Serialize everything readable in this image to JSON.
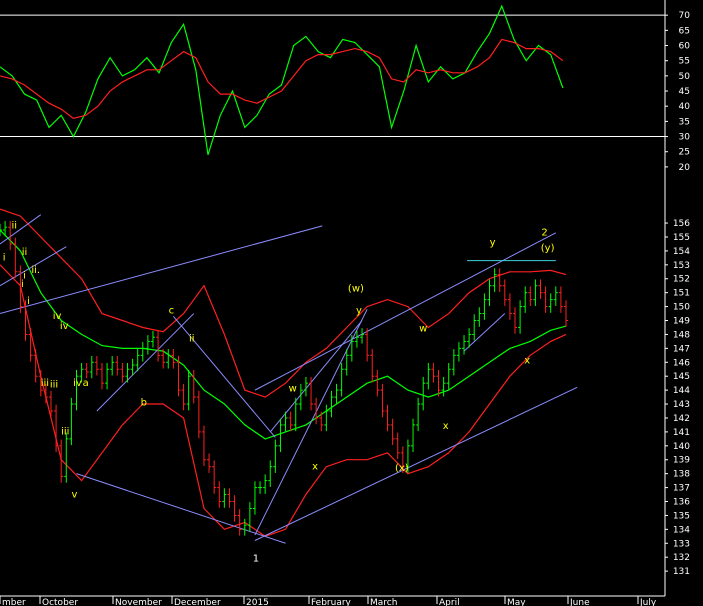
{
  "chart_data": [
    {
      "type": "line",
      "panel": "oscillator",
      "ylim": [
        17,
        75
      ],
      "ticks": [
        20,
        25,
        30,
        35,
        40,
        45,
        50,
        55,
        60,
        65,
        70
      ],
      "hlines": [
        30,
        70
      ],
      "x": [
        0,
        12,
        24,
        36,
        48,
        60,
        72,
        84,
        96,
        108,
        120,
        132,
        144,
        156,
        168,
        180,
        192,
        204,
        216,
        228,
        240,
        252,
        264,
        276,
        288,
        300,
        312,
        324,
        336,
        348,
        360,
        372,
        384,
        396,
        408,
        420,
        432,
        444,
        456,
        468,
        480,
        492,
        504,
        516,
        528,
        540,
        552
      ],
      "series": [
        {
          "color": "#00ff00",
          "values": [
            53,
            50,
            44,
            42,
            33,
            37,
            30,
            38,
            49,
            56,
            50,
            52,
            56,
            51,
            61,
            67,
            52,
            24,
            37,
            45,
            33,
            37,
            44,
            47,
            60,
            63,
            58,
            56,
            62,
            61,
            57,
            53,
            33,
            45,
            60,
            48,
            53,
            49,
            51,
            58,
            64,
            73,
            62,
            55,
            60,
            57,
            46
          ]
        },
        {
          "color": "#ff2020",
          "values": [
            50,
            49,
            47,
            44,
            41,
            39,
            36,
            37,
            40,
            45,
            48,
            50,
            52,
            52,
            55,
            58,
            56,
            48,
            44,
            44,
            42,
            41,
            43,
            45,
            50,
            55,
            57,
            57,
            58,
            59,
            58,
            56,
            49,
            48,
            52,
            51,
            52,
            51,
            51,
            53,
            56,
            62,
            61,
            59,
            59,
            58,
            55
          ]
        }
      ]
    },
    {
      "type": "bar",
      "panel": "price",
      "ylim": [
        129.5,
        157.8
      ],
      "ticks": [
        131,
        132,
        133,
        134,
        135,
        136,
        137,
        138,
        139,
        140,
        141,
        142,
        143,
        144,
        145,
        146,
        147,
        148,
        149,
        150,
        151,
        152,
        153,
        154,
        155,
        156
      ],
      "months": [
        "mber",
        "October",
        "November",
        "December",
        "2015",
        "February",
        "March",
        "April",
        "May",
        "June",
        "July"
      ],
      "x": [
        0,
        5,
        10,
        15,
        20,
        25,
        30,
        35,
        40,
        45,
        50,
        55,
        60,
        65,
        70,
        75,
        80,
        85,
        90,
        95,
        100,
        105,
        110,
        115,
        120,
        125,
        130,
        135,
        140,
        145,
        150,
        155,
        160,
        165,
        170,
        175,
        180,
        185,
        190,
        195,
        200,
        205,
        210,
        215,
        220,
        225,
        230,
        235,
        240,
        245,
        250,
        255,
        260,
        265,
        270,
        275,
        280,
        285,
        290,
        295,
        300,
        305,
        310,
        315,
        320,
        325,
        330,
        335,
        340,
        345,
        350,
        355,
        360,
        365,
        370,
        375,
        380,
        385,
        390,
        395,
        400,
        405,
        410,
        415,
        420,
        425,
        430,
        435,
        440,
        445,
        450,
        455,
        460,
        465,
        470,
        475,
        480,
        485,
        490,
        495,
        500,
        505,
        510,
        515,
        520,
        525,
        530,
        535,
        540,
        545,
        550,
        555
      ],
      "close": [
        155.5,
        155.7,
        154.5,
        152.5,
        150.0,
        148.0,
        146.5,
        145.0,
        144.0,
        143.5,
        142.5,
        140.0,
        137.8,
        140.5,
        143.0,
        145.0,
        145.5,
        145.3,
        146.0,
        145.5,
        144.5,
        145.5,
        146.0,
        145.5,
        145.0,
        145.5,
        145.8,
        146.5,
        147.0,
        147.5,
        147.8,
        146.5,
        146.0,
        146.5,
        146.0,
        144.0,
        143.0,
        145.0,
        143.5,
        141.0,
        139.0,
        138.5,
        137.0,
        136.0,
        136.5,
        136.0,
        135.0,
        134.0,
        134.3,
        135.5,
        137.0,
        137.0,
        137.5,
        138.5,
        140.0,
        141.5,
        142.0,
        141.5,
        143.0,
        144.0,
        144.5,
        143.0,
        142.0,
        141.5,
        142.5,
        143.5,
        144.0,
        145.5,
        146.5,
        147.5,
        147.8,
        148.0,
        146.5,
        145.0,
        144.0,
        142.5,
        141.5,
        140.5,
        139.5,
        138.5,
        140.0,
        141.5,
        143.0,
        144.5,
        145.5,
        145.0,
        144.0,
        144.5,
        145.5,
        146.5,
        147.0,
        147.5,
        148.0,
        149.0,
        149.5,
        150.5,
        151.5,
        152.3,
        151.5,
        150.5,
        149.5,
        148.5,
        150.0,
        151.0,
        150.5,
        151.5,
        151.0,
        150.0,
        150.5,
        151.0,
        150.0,
        149.0
      ],
      "lines": [
        {
          "color": "#ff2020",
          "role": "upper band",
          "x": [
            0,
            20,
            40,
            60,
            80,
            100,
            120,
            140,
            160,
            180,
            200,
            220,
            240,
            260,
            280,
            300,
            320,
            340,
            360,
            380,
            400,
            420,
            440,
            460,
            480,
            500,
            520,
            540,
            555
          ],
          "values": [
            157.0,
            156.5,
            155.0,
            153.5,
            152.0,
            149.5,
            149.0,
            148.5,
            148.2,
            149.5,
            151.5,
            148.0,
            144.0,
            143.5,
            144.5,
            146.0,
            147.0,
            148.5,
            150.0,
            150.5,
            150.0,
            148.5,
            149.5,
            151.0,
            152.0,
            152.5,
            152.5,
            152.6,
            152.3
          ]
        },
        {
          "color": "#ff2020",
          "role": "lower band",
          "x": [
            0,
            20,
            40,
            60,
            80,
            100,
            120,
            140,
            160,
            180,
            200,
            220,
            240,
            260,
            280,
            300,
            320,
            340,
            360,
            380,
            400,
            420,
            440,
            460,
            480,
            500,
            520,
            540,
            555
          ],
          "values": [
            153.0,
            151.5,
            145.0,
            139.0,
            137.5,
            139.5,
            141.5,
            143.0,
            143.0,
            142.0,
            135.5,
            134.0,
            134.5,
            133.5,
            134.0,
            136.5,
            138.5,
            139.0,
            139.0,
            139.5,
            138.0,
            138.5,
            139.5,
            141.0,
            143.0,
            145.0,
            146.5,
            147.5,
            148.0
          ]
        },
        {
          "color": "#00ff00",
          "role": "moving average",
          "x": [
            0,
            20,
            40,
            60,
            80,
            100,
            120,
            140,
            160,
            180,
            200,
            220,
            240,
            260,
            280,
            300,
            320,
            340,
            360,
            380,
            400,
            420,
            440,
            460,
            480,
            500,
            520,
            540,
            555
          ],
          "values": [
            155.5,
            154.0,
            151.0,
            149.0,
            148.0,
            147.2,
            147.0,
            147.0,
            146.8,
            145.8,
            144.0,
            143.0,
            141.5,
            140.5,
            141.0,
            141.5,
            142.5,
            143.5,
            144.5,
            145.0,
            144.0,
            143.5,
            144.0,
            145.0,
            146.0,
            147.0,
            147.5,
            148.3,
            148.6
          ]
        }
      ],
      "trendlines": [
        {
          "color": "#8c8cff",
          "points": [
            [
              0,
              154.5
            ],
            [
              40,
              156.6
            ]
          ]
        },
        {
          "color": "#8c8cff",
          "points": [
            [
              0,
              151.5
            ],
            [
              65,
              154.3
            ]
          ]
        },
        {
          "color": "#8c8cff",
          "points": [
            [
              0,
              149.5
            ],
            [
              316,
              155.8
            ]
          ]
        },
        {
          "color": "#8c8cff",
          "points": [
            [
              75,
              138.0
            ],
            [
              280,
              133.0
            ]
          ]
        },
        {
          "color": "#8c8cff",
          "points": [
            [
              250,
              133.2
            ],
            [
              566,
              144.2
            ]
          ]
        },
        {
          "color": "#8c8cff",
          "points": [
            [
              250,
              144.0
            ],
            [
              545,
              155.3
            ]
          ]
        },
        {
          "color": "#8c8cff",
          "points": [
            [
              95,
              142.5
            ],
            [
              190,
              149.5
            ]
          ]
        },
        {
          "color": "#8c8cff",
          "points": [
            [
              170,
              149.3
            ],
            [
              270,
              140.6
            ]
          ]
        },
        {
          "color": "#8c8cff",
          "points": [
            [
              250,
              133.6
            ],
            [
              360,
              149.8
            ]
          ]
        },
        {
          "color": "#8c8cff",
          "points": [
            [
              265,
              141.0
            ],
            [
              355,
              149.0
            ]
          ]
        },
        {
          "color": "#8c8cff",
          "points": [
            [
              455,
              146.8
            ],
            [
              495,
              149.5
            ]
          ]
        },
        {
          "color": "#40d0e0",
          "points": [
            [
              458,
              153.3
            ],
            [
              545,
              153.3
            ]
          ]
        }
      ],
      "annotations": [
        {
          "text": "ii",
          "x": 14,
          "y": 155.6,
          "color": "#ffff00"
        },
        {
          "text": "i",
          "x": 4,
          "y": 153.3,
          "color": "#ffff00"
        },
        {
          "text": "ii",
          "x": 24,
          "y": 153.7,
          "color": "#ffff00"
        },
        {
          "text": "i",
          "x": 24,
          "y": 152.0,
          "color": "#ffff00"
        },
        {
          "text": "ii.",
          "x": 35,
          "y": 152.4,
          "color": "#ffff00"
        },
        {
          "text": "i",
          "x": 22,
          "y": 151.4,
          "color": "#ffff00"
        },
        {
          "text": "i",
          "x": 28,
          "y": 150.2,
          "color": "#ffff00"
        },
        {
          "text": "iv",
          "x": 56,
          "y": 149.1,
          "color": "#ffff00"
        },
        {
          "text": "iv",
          "x": 63,
          "y": 148.4,
          "color": "#ffff00"
        },
        {
          "text": "c",
          "x": 168,
          "y": 149.5,
          "color": "#ffff00"
        },
        {
          "text": "ii",
          "x": 188,
          "y": 147.5,
          "color": "#ffff00"
        },
        {
          "text": "iii",
          "x": 44,
          "y": 144.3,
          "color": "#ffff00"
        },
        {
          "text": "iii",
          "x": 53,
          "y": 144.2,
          "color": "#ffff00"
        },
        {
          "text": "iv",
          "x": 76,
          "y": 144.3,
          "color": "#ffff00"
        },
        {
          "text": "a",
          "x": 84,
          "y": 144.3,
          "color": "#ffff00"
        },
        {
          "text": "b",
          "x": 141,
          "y": 142.9,
          "color": "#ffff00"
        },
        {
          "text": "iii",
          "x": 64,
          "y": 140.8,
          "color": "#ffff00"
        },
        {
          "text": "v",
          "x": 73,
          "y": 136.3,
          "color": "#ffff00"
        },
        {
          "text": "1",
          "x": 251,
          "y": 131.7,
          "color": "#ffffff"
        },
        {
          "text": "w",
          "x": 287,
          "y": 143.9,
          "color": "#ffff00"
        },
        {
          "text": "x",
          "x": 309,
          "y": 138.3,
          "color": "#ffff00"
        },
        {
          "text": "(w)",
          "x": 349,
          "y": 151.1,
          "color": "#ffff00"
        },
        {
          "text": "y",
          "x": 352,
          "y": 149.5,
          "color": "#ffff00"
        },
        {
          "text": "w",
          "x": 415,
          "y": 148.2,
          "color": "#ffff00"
        },
        {
          "text": "(x)",
          "x": 394,
          "y": 138.2,
          "color": "#ffff00"
        },
        {
          "text": "x",
          "x": 437,
          "y": 141.2,
          "color": "#ffff00"
        },
        {
          "text": "y",
          "x": 483,
          "y": 154.4,
          "color": "#ffff00"
        },
        {
          "text": "2",
          "x": 534,
          "y": 155.1,
          "color": "#ffff00"
        },
        {
          "text": "(y)",
          "x": 537,
          "y": 154.0,
          "color": "#ffff00"
        },
        {
          "text": "x",
          "x": 517,
          "y": 145.9,
          "color": "#ffff00"
        }
      ]
    }
  ]
}
